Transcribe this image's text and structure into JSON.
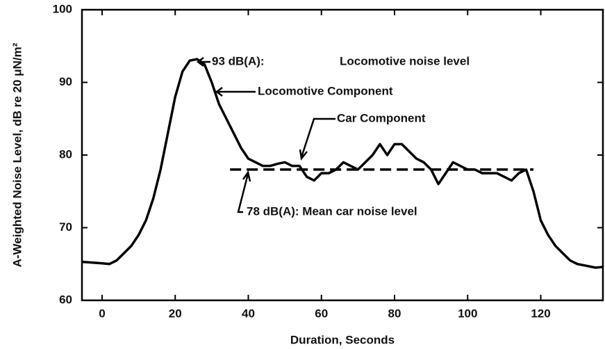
{
  "chart_data": {
    "type": "line",
    "x_label": "Duration, Seconds",
    "y_label": "A-Weighted Noise Level, dB re 20 μN/m²",
    "x": [
      -5.5,
      0,
      2,
      4,
      6,
      8,
      10,
      12,
      14,
      16,
      18,
      20,
      22,
      24,
      26,
      28,
      30,
      32,
      34,
      36,
      38,
      40,
      42,
      44,
      46,
      48,
      50,
      52,
      54,
      56,
      58,
      60,
      62,
      64,
      66,
      68,
      70,
      72,
      74,
      76,
      78,
      80,
      82,
      84,
      86,
      88,
      90,
      92,
      94,
      96,
      98,
      100,
      102,
      104,
      106,
      108,
      110,
      112,
      114,
      116,
      118,
      120,
      122,
      124,
      126,
      128,
      130,
      132,
      135,
      137
    ],
    "values": [
      65.3,
      65.1,
      65,
      65.5,
      66.5,
      67.5,
      69,
      71,
      74,
      78,
      83,
      88,
      91.5,
      93,
      93.2,
      92.5,
      90,
      87,
      85,
      83,
      81,
      79.5,
      79,
      78.5,
      78.5,
      78.8,
      79,
      78.5,
      78.5,
      77,
      76.5,
      77.5,
      77.5,
      78,
      79,
      78.5,
      78,
      79,
      80,
      81.5,
      80,
      81.5,
      81.5,
      80.5,
      79.5,
      79,
      78,
      76,
      77.5,
      79,
      78.5,
      78,
      78,
      77.5,
      77.5,
      77.5,
      77,
      76.5,
      77.5,
      78,
      75,
      71,
      69,
      67.5,
      66.5,
      65.5,
      65,
      64.8,
      64.5,
      64.6
    ],
    "color": "#000000",
    "mean_line": {
      "value": 78,
      "x": [
        35,
        118
      ]
    },
    "annotations": [
      "93 dB(A):",
      "Locomotive noise level",
      "Locomotive Component",
      "Car Component",
      "78 dB(A): Mean car noise level"
    ],
    "xlim": [
      -5.5,
      137
    ],
    "xticks": [
      0,
      20,
      40,
      60,
      80,
      100,
      120
    ],
    "ylim": [
      60,
      100
    ],
    "yticks": [
      60,
      70,
      80,
      90,
      100
    ]
  }
}
